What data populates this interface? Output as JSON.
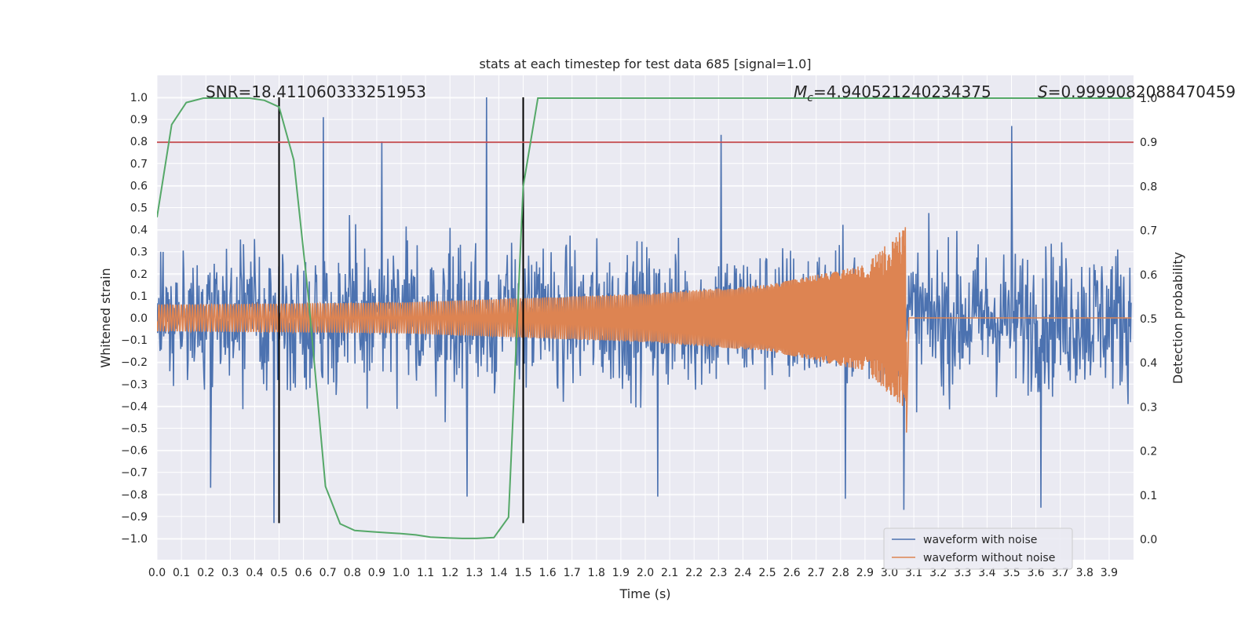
{
  "chart_data": {
    "type": "line",
    "title": "stats at each timestep for test data 685 [signal=1.0]",
    "xlabel": "Time (s)",
    "ylabel": "Whitened strain",
    "y2label": "Detection probability",
    "xlim": [
      0.0,
      3.99
    ],
    "ylim": [
      -1.05,
      1.1
    ],
    "y2lim": [
      -0.05,
      1.04
    ],
    "x_ticks": [
      0.0,
      0.1,
      0.2,
      0.3,
      0.4,
      0.5,
      0.6,
      0.7,
      0.8,
      0.9,
      1.0,
      1.1,
      1.2,
      1.3,
      1.4,
      1.5,
      1.6,
      1.7,
      1.8,
      1.9,
      2.0,
      2.1,
      2.2,
      2.3,
      2.4,
      2.5,
      2.6,
      2.7,
      2.8,
      2.9,
      3.0,
      3.1,
      3.2,
      3.3,
      3.4,
      3.5,
      3.6,
      3.7,
      3.8,
      3.9
    ],
    "x_tick_labels": [
      "0.0",
      "0.1",
      "0.2",
      "0.3",
      "0.4",
      "0.5",
      "0.6",
      "0.7",
      "0.8",
      "0.9",
      "1.0",
      "1.1",
      "1.2",
      "1.3",
      "1.4",
      "1.5",
      "1.6",
      "1.7",
      "1.8",
      "1.9",
      "2.0",
      "2.1",
      "2.2",
      "2.3",
      "2.4",
      "2.5",
      "2.6",
      "2.7",
      "2.8",
      "2.9",
      "3.0",
      "3.1",
      "3.2",
      "3.3",
      "3.4",
      "3.5",
      "3.6",
      "3.7",
      "3.8",
      "3.9"
    ],
    "y_ticks": [
      1.0,
      0.9,
      0.8,
      0.7,
      0.6,
      0.5,
      0.4,
      0.3,
      0.2,
      0.1,
      0.0,
      -0.1,
      -0.2,
      -0.3,
      -0.4,
      -0.5,
      -0.6,
      -0.7,
      -0.8,
      -0.9,
      -1.0
    ],
    "y_tick_labels": [
      "1.0",
      "0.9",
      "0.8",
      "0.7",
      "0.6",
      "0.5",
      "0.4",
      "0.3",
      "0.2",
      "0.1",
      "0.0",
      "−0.1",
      "−0.2",
      "−0.3",
      "−0.4",
      "−0.5",
      "−0.6",
      "−0.7",
      "−0.8",
      "−0.9",
      "−1.0"
    ],
    "y2_ticks": [
      1.0,
      0.9,
      0.8,
      0.7,
      0.6,
      0.5,
      0.4,
      0.3,
      0.2,
      0.1,
      0.0
    ],
    "y2_tick_labels": [
      "1.0",
      "0.9",
      "0.8",
      "0.7",
      "0.6",
      "0.5",
      "0.4",
      "0.3",
      "0.2",
      "0.1",
      "0.0"
    ],
    "grid": true,
    "legend": {
      "placement": "lower-right",
      "entries": [
        {
          "label": "waveform with noise",
          "color": "#4c72b0"
        },
        {
          "label": "waveform without noise",
          "color": "#dd8452"
        }
      ]
    },
    "annotations": {
      "snr_text": "SNR=18.411060333251953",
      "mc_prefix": "M",
      "mc_sub": "c",
      "mc_value": "=4.940521240234375",
      "s_prefix": "S",
      "s_value": "=0.9999082088470459"
    },
    "series": [
      {
        "name": "waveform with noise",
        "axis": "left",
        "color": "#4c72b0",
        "render": "noise",
        "x_range": [
          0.0,
          3.99
        ],
        "typical_amplitude": 0.3,
        "peaks": [
          {
            "x": 0.68,
            "y": 0.91
          },
          {
            "x": 1.35,
            "y": 1.0
          },
          {
            "x": 2.31,
            "y": 0.83
          },
          {
            "x": 3.5,
            "y": 0.87
          },
          {
            "x": 3.06,
            "y": -0.87
          },
          {
            "x": 3.62,
            "y": -0.86
          },
          {
            "x": 0.48,
            "y": -0.93
          },
          {
            "x": 1.27,
            "y": -0.81
          },
          {
            "x": 2.05,
            "y": -0.81
          },
          {
            "x": 0.22,
            "y": -0.77
          },
          {
            "x": 2.82,
            "y": -0.82
          },
          {
            "x": 0.92,
            "y": 0.8
          }
        ]
      },
      {
        "name": "waveform without noise",
        "axis": "left",
        "color": "#dd8452",
        "render": "chirp",
        "x_range": [
          0.0,
          3.07
        ],
        "envelope": [
          [
            0.0,
            0.06
          ],
          [
            1.0,
            0.07
          ],
          [
            1.5,
            0.09
          ],
          [
            2.0,
            0.11
          ],
          [
            2.5,
            0.15
          ],
          [
            2.9,
            0.24
          ],
          [
            3.07,
            0.42
          ]
        ],
        "merger_min": -0.52,
        "post_merger_value": 0.0,
        "post_merger_range": [
          3.07,
          3.99
        ]
      },
      {
        "name": "detection probability",
        "axis": "right",
        "color": "#55a868",
        "render": "line",
        "x": [
          0.0,
          0.06,
          0.12,
          0.19,
          0.25,
          0.31,
          0.38,
          0.44,
          0.5,
          0.56,
          0.62,
          0.69,
          0.75,
          0.81,
          0.88,
          0.94,
          1.0,
          1.06,
          1.12,
          1.19,
          1.25,
          1.31,
          1.38,
          1.44,
          1.5,
          1.56,
          3.99
        ],
        "y": [
          0.73,
          0.94,
          0.99,
          1.0,
          1.0,
          1.0,
          1.0,
          0.995,
          0.98,
          0.86,
          0.55,
          0.12,
          0.035,
          0.02,
          0.017,
          0.015,
          0.013,
          0.01,
          0.005,
          0.003,
          0.002,
          0.002,
          0.004,
          0.05,
          0.8,
          1.0,
          1.0
        ]
      }
    ],
    "reference_lines": [
      {
        "orientation": "vertical",
        "x": 0.5,
        "ymin": -0.93,
        "ymax": 1.0,
        "color": "#000000"
      },
      {
        "orientation": "vertical",
        "x": 1.5,
        "ymin": -0.93,
        "ymax": 1.0,
        "color": "#000000"
      },
      {
        "orientation": "horizontal",
        "axis": "right",
        "y": 0.9,
        "color": "#c44e52"
      }
    ],
    "colors": {
      "plot_background": "#eaeaf2",
      "grid": "#ffffff"
    }
  }
}
